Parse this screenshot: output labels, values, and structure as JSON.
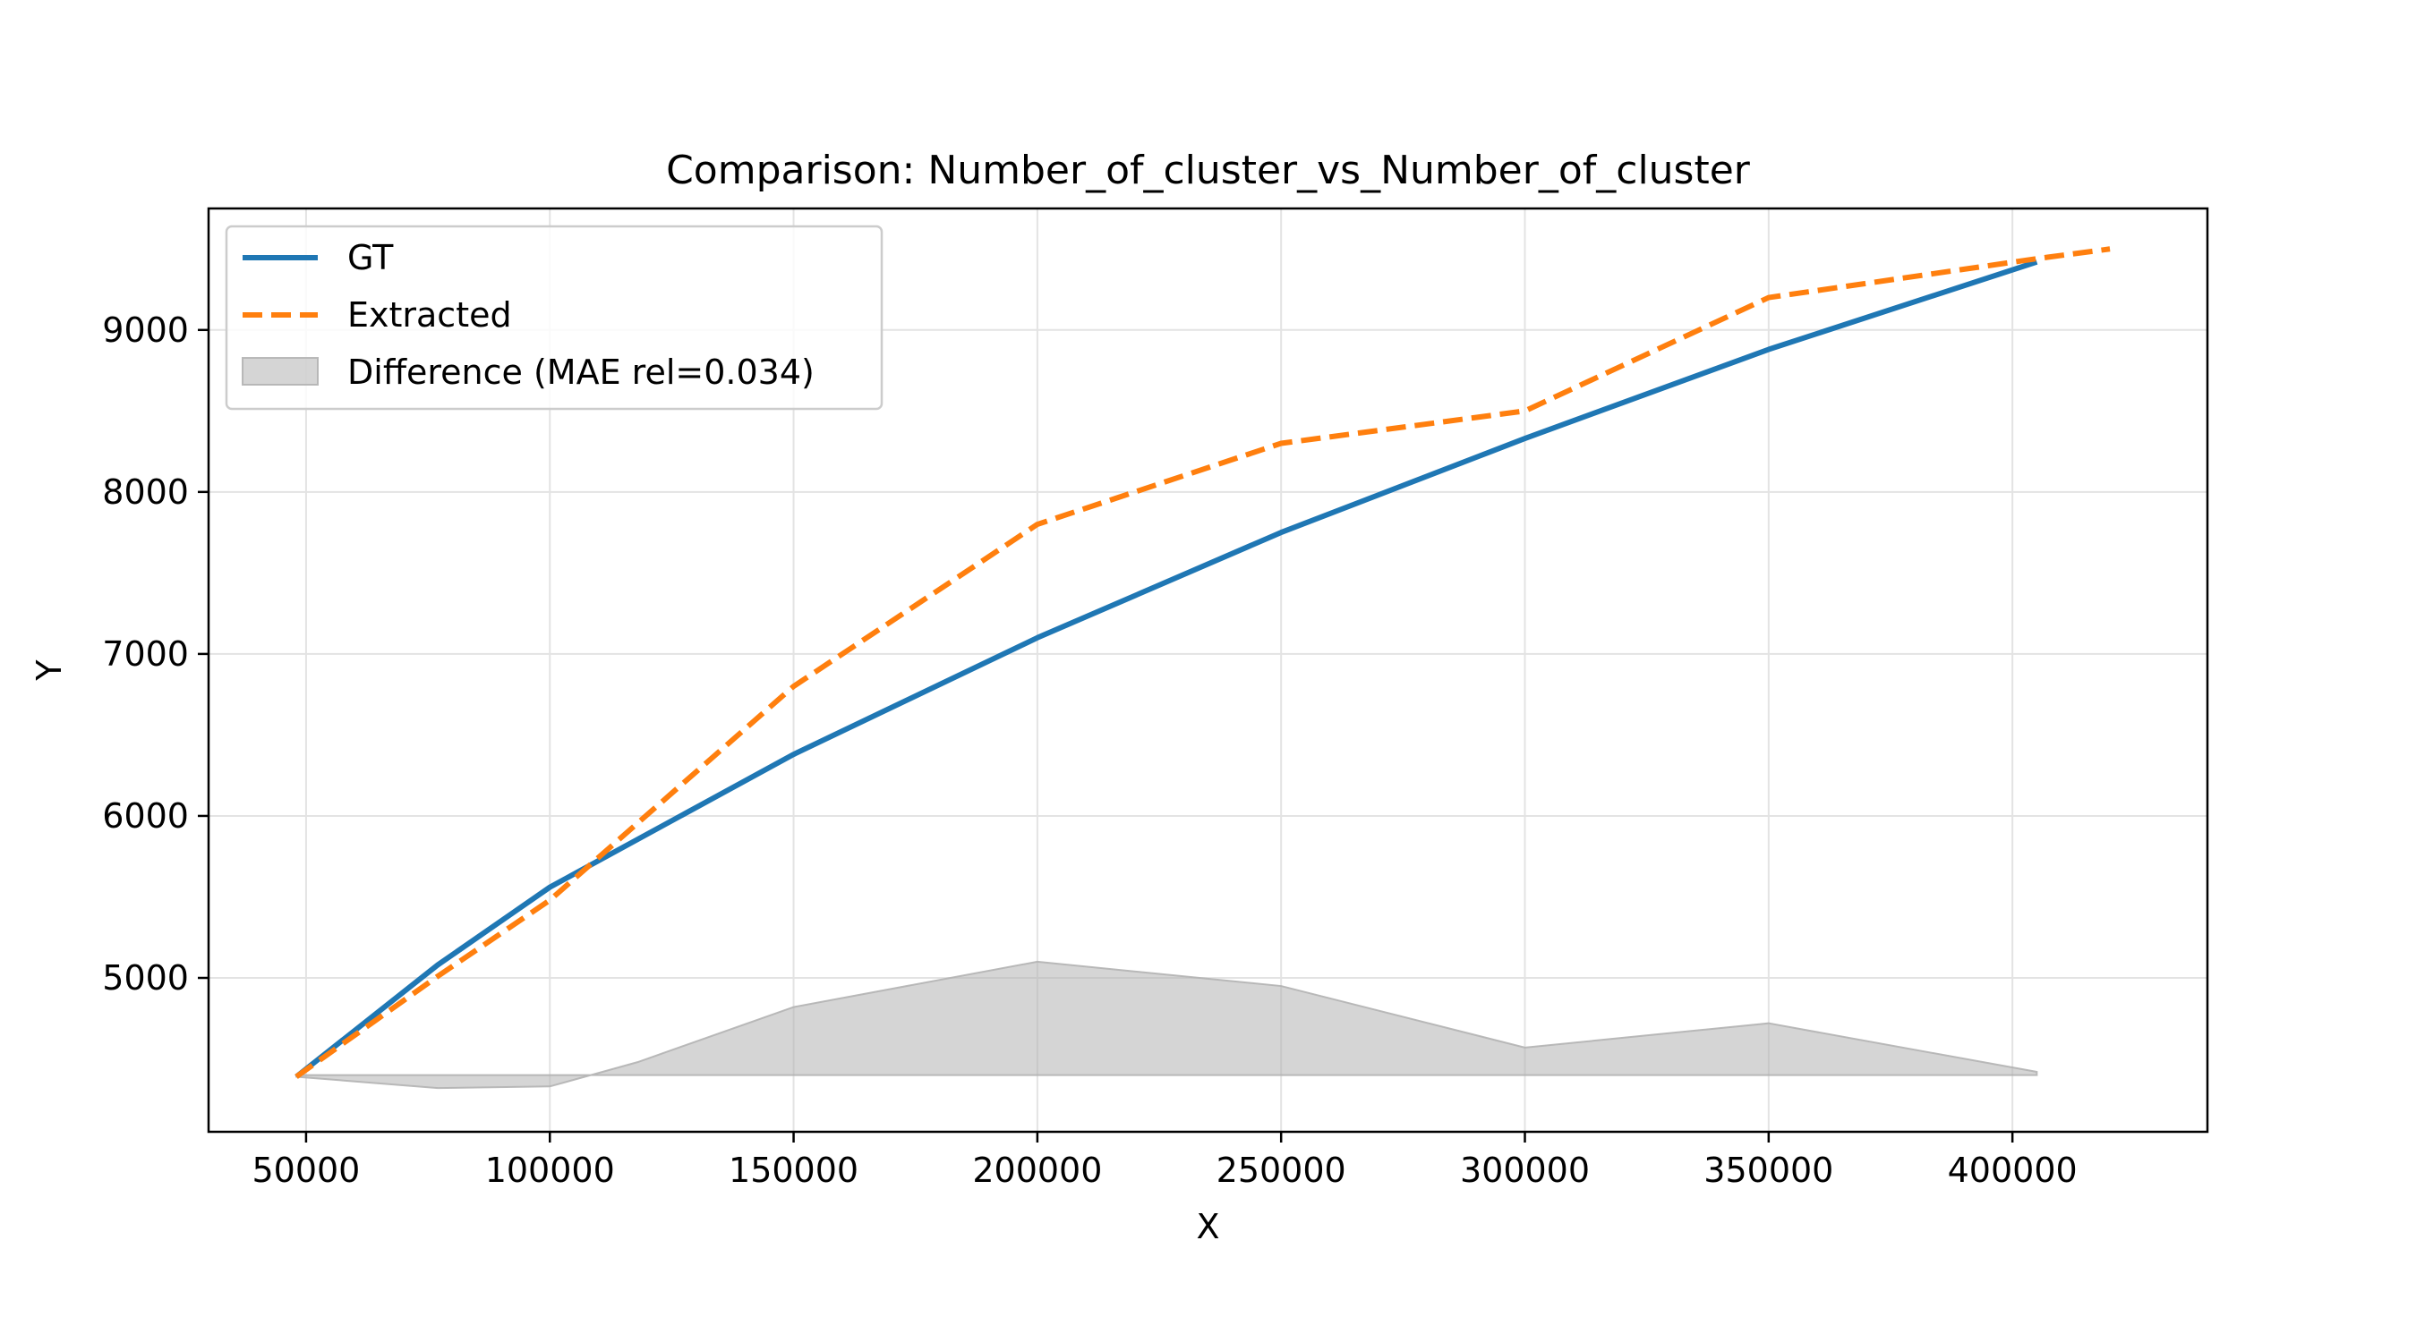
{
  "chart_data": {
    "type": "line",
    "title": "Comparison: Number_of_cluster_vs_Number_of_cluster",
    "xlabel": "X",
    "ylabel": "Y",
    "xlim": [
      30000,
      440000
    ],
    "ylim": [
      4050,
      9750
    ],
    "xticks": [
      50000,
      100000,
      150000,
      200000,
      250000,
      300000,
      350000,
      400000
    ],
    "yticks": [
      5000,
      6000,
      7000,
      8000,
      9000
    ],
    "grid": true,
    "legend_position": "upper left",
    "colors": {
      "gt": "#1f77b4",
      "extracted": "#ff7f0e",
      "difference": "#b3b3b3"
    },
    "series": [
      {
        "name": "GT",
        "style": "solid",
        "x": [
          48000,
          77000,
          100000,
          150000,
          200000,
          250000,
          300000,
          350000,
          405000
        ],
        "y": [
          4390,
          5080,
          5560,
          6380,
          7100,
          7750,
          8330,
          8880,
          9420
        ]
      },
      {
        "name": "Extracted",
        "style": "dashed",
        "x": [
          48000,
          77000,
          100000,
          150000,
          200000,
          250000,
          300000,
          350000,
          405000,
          420000
        ],
        "y": [
          4390,
          5010,
          5480,
          6800,
          7800,
          8300,
          8500,
          9200,
          9440,
          9500
        ]
      }
    ],
    "difference": {
      "label": "Difference (MAE rel=0.034)",
      "baseline": 4400,
      "x": [
        48000,
        77000,
        100000,
        118000,
        150000,
        200000,
        250000,
        300000,
        350000,
        405000
      ],
      "y": [
        4390,
        4320,
        4330,
        4480,
        4820,
        5100,
        4950,
        4570,
        4720,
        4420
      ]
    }
  }
}
